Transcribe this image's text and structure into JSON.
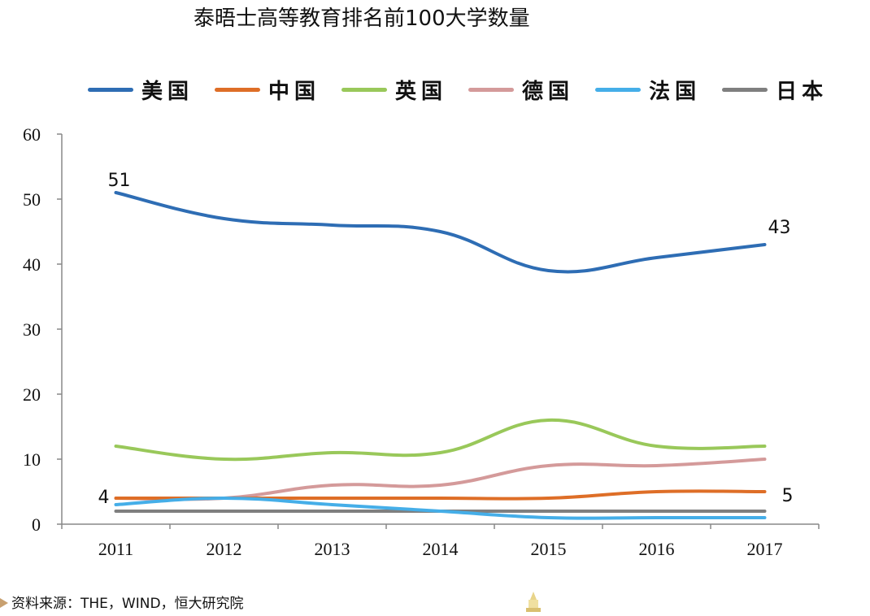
{
  "chart_data": {
    "type": "line",
    "title": "泰晤士高等教育排名前100大学数量",
    "categories": [
      "2011",
      "2012",
      "2013",
      "2014",
      "2015",
      "2016",
      "2017"
    ],
    "y_ticks": [
      "0",
      "10",
      "20",
      "30",
      "40",
      "50",
      "60"
    ],
    "ylim": [
      0,
      60
    ],
    "grid": false,
    "legend_position": "top",
    "series": [
      {
        "name": "美国",
        "color": "#2e6db4",
        "values": [
          51,
          47,
          46,
          45,
          39,
          41,
          43
        ]
      },
      {
        "name": "中国",
        "color": "#de6e27",
        "values": [
          4,
          4,
          4,
          4,
          4,
          5,
          5
        ]
      },
      {
        "name": "英国",
        "color": "#99c85a",
        "values": [
          12,
          10,
          11,
          11,
          16,
          12,
          12
        ]
      },
      {
        "name": "德国",
        "color": "#d49a9a",
        "values": [
          4,
          4,
          6,
          6,
          9,
          9,
          10
        ]
      },
      {
        "name": "法国",
        "color": "#45aee8",
        "values": [
          3,
          4,
          3,
          2,
          1,
          1,
          1
        ]
      },
      {
        "name": "日本",
        "color": "#7f7f7f",
        "values": [
          2,
          2,
          2,
          2,
          2,
          2,
          2
        ]
      }
    ],
    "annotations": [
      {
        "text": "51",
        "series": 0,
        "index": 0
      },
      {
        "text": "43",
        "series": 0,
        "index": 6
      },
      {
        "text": "4",
        "series": 1,
        "index": 0
      },
      {
        "text": "5",
        "series": 1,
        "index": 6
      }
    ]
  },
  "source": "资料来源：THE，WIND，恒大研究院"
}
